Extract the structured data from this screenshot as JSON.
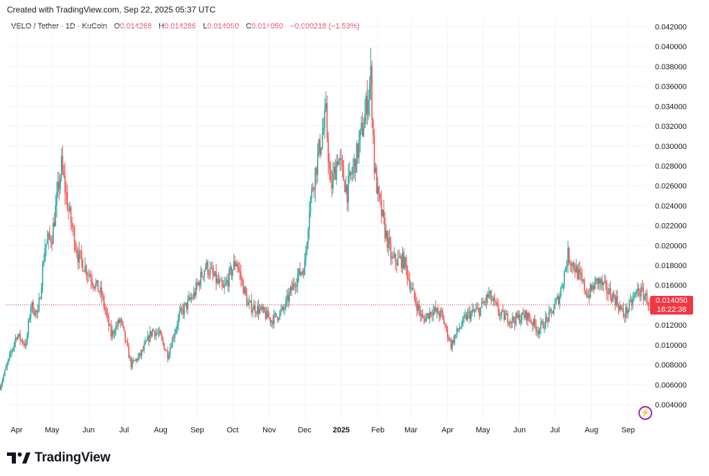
{
  "header": {
    "created": "Created with TradingView.com, Sep 22, 2025 05:37 UTC"
  },
  "legend": {
    "symbol": "VELO / Tether · 1D · KuCoin",
    "o_label": "O",
    "o": "0.014268",
    "h_label": "H",
    "h": "0.014286",
    "l_label": "L",
    "l": "0.014050",
    "c_label": "C",
    "c": "0.014050",
    "change": "−0.000218 (−1.53%)"
  },
  "last_price": {
    "value": "0.014050",
    "countdown": "18:22:38",
    "color": "#f23645"
  },
  "brand": {
    "name": "TradingView",
    "icon": "tradingview-logo-icon"
  },
  "bolt_icon": "lightning-icon",
  "colors": {
    "up": "#26a69a",
    "down": "#ef5350",
    "grid": "#f0f3fa",
    "axis_text": "#131722"
  },
  "chart_data": {
    "type": "candlestick",
    "title": "VELO / Tether · 1D · KuCoin",
    "ylim": [
      0.0025,
      0.043
    ],
    "y_ticks": [
      "0.042000",
      "0.040000",
      "0.038000",
      "0.036000",
      "0.034000",
      "0.032000",
      "0.030000",
      "0.028000",
      "0.026000",
      "0.024000",
      "0.022000",
      "0.020000",
      "0.018000",
      "0.016000",
      "0.014000",
      "0.012000",
      "0.010000",
      "0.008000",
      "0.006000",
      "0.004000"
    ],
    "x_ticks": [
      "Apr",
      "May",
      "Jun",
      "Jul",
      "Aug",
      "Sep",
      "Oct",
      "Nov",
      "Dec",
      "2025",
      "Feb",
      "Mar",
      "Apr",
      "May",
      "Jun",
      "Jul",
      "Aug",
      "Sep"
    ],
    "x_tick_days": [
      0,
      30,
      61,
      91,
      122,
      153,
      183,
      214,
      244,
      275,
      306,
      334,
      365,
      395,
      426,
      456,
      487,
      518
    ],
    "price_line": 0.01405,
    "grid": true,
    "anchors": [
      [
        -14,
        0.0058
      ],
      [
        0,
        0.011
      ],
      [
        8,
        0.01
      ],
      [
        12,
        0.014
      ],
      [
        18,
        0.013
      ],
      [
        24,
        0.02
      ],
      [
        30,
        0.021
      ],
      [
        38,
        0.028
      ],
      [
        44,
        0.0235
      ],
      [
        52,
        0.019
      ],
      [
        62,
        0.017
      ],
      [
        72,
        0.015
      ],
      [
        80,
        0.011
      ],
      [
        88,
        0.0125
      ],
      [
        97,
        0.008
      ],
      [
        105,
        0.009
      ],
      [
        115,
        0.0115
      ],
      [
        121,
        0.011
      ],
      [
        128,
        0.009
      ],
      [
        138,
        0.013
      ],
      [
        150,
        0.015
      ],
      [
        160,
        0.018
      ],
      [
        175,
        0.0155
      ],
      [
        186,
        0.0185
      ],
      [
        196,
        0.014
      ],
      [
        206,
        0.0135
      ],
      [
        216,
        0.0125
      ],
      [
        226,
        0.0135
      ],
      [
        236,
        0.0165
      ],
      [
        244,
        0.018
      ],
      [
        248,
        0.024
      ],
      [
        256,
        0.0295
      ],
      [
        262,
        0.033
      ],
      [
        266,
        0.0255
      ],
      [
        272,
        0.029
      ],
      [
        280,
        0.0255
      ],
      [
        288,
        0.029
      ],
      [
        295,
        0.033
      ],
      [
        300,
        0.037
      ],
      [
        303,
        0.028
      ],
      [
        306,
        0.025
      ],
      [
        312,
        0.0215
      ],
      [
        318,
        0.0185
      ],
      [
        328,
        0.0185
      ],
      [
        336,
        0.015
      ],
      [
        344,
        0.0125
      ],
      [
        352,
        0.0135
      ],
      [
        360,
        0.013
      ],
      [
        368,
        0.01
      ],
      [
        374,
        0.0115
      ],
      [
        382,
        0.013
      ],
      [
        392,
        0.0135
      ],
      [
        400,
        0.015
      ],
      [
        410,
        0.013
      ],
      [
        420,
        0.0125
      ],
      [
        432,
        0.013
      ],
      [
        442,
        0.0115
      ],
      [
        452,
        0.013
      ],
      [
        460,
        0.015
      ],
      [
        467,
        0.019
      ],
      [
        472,
        0.018
      ],
      [
        478,
        0.0165
      ],
      [
        484,
        0.015
      ],
      [
        492,
        0.0165
      ],
      [
        500,
        0.0155
      ],
      [
        508,
        0.0145
      ],
      [
        514,
        0.013
      ],
      [
        520,
        0.014
      ],
      [
        526,
        0.0155
      ],
      [
        532,
        0.015
      ],
      [
        536,
        0.01405
      ]
    ]
  }
}
